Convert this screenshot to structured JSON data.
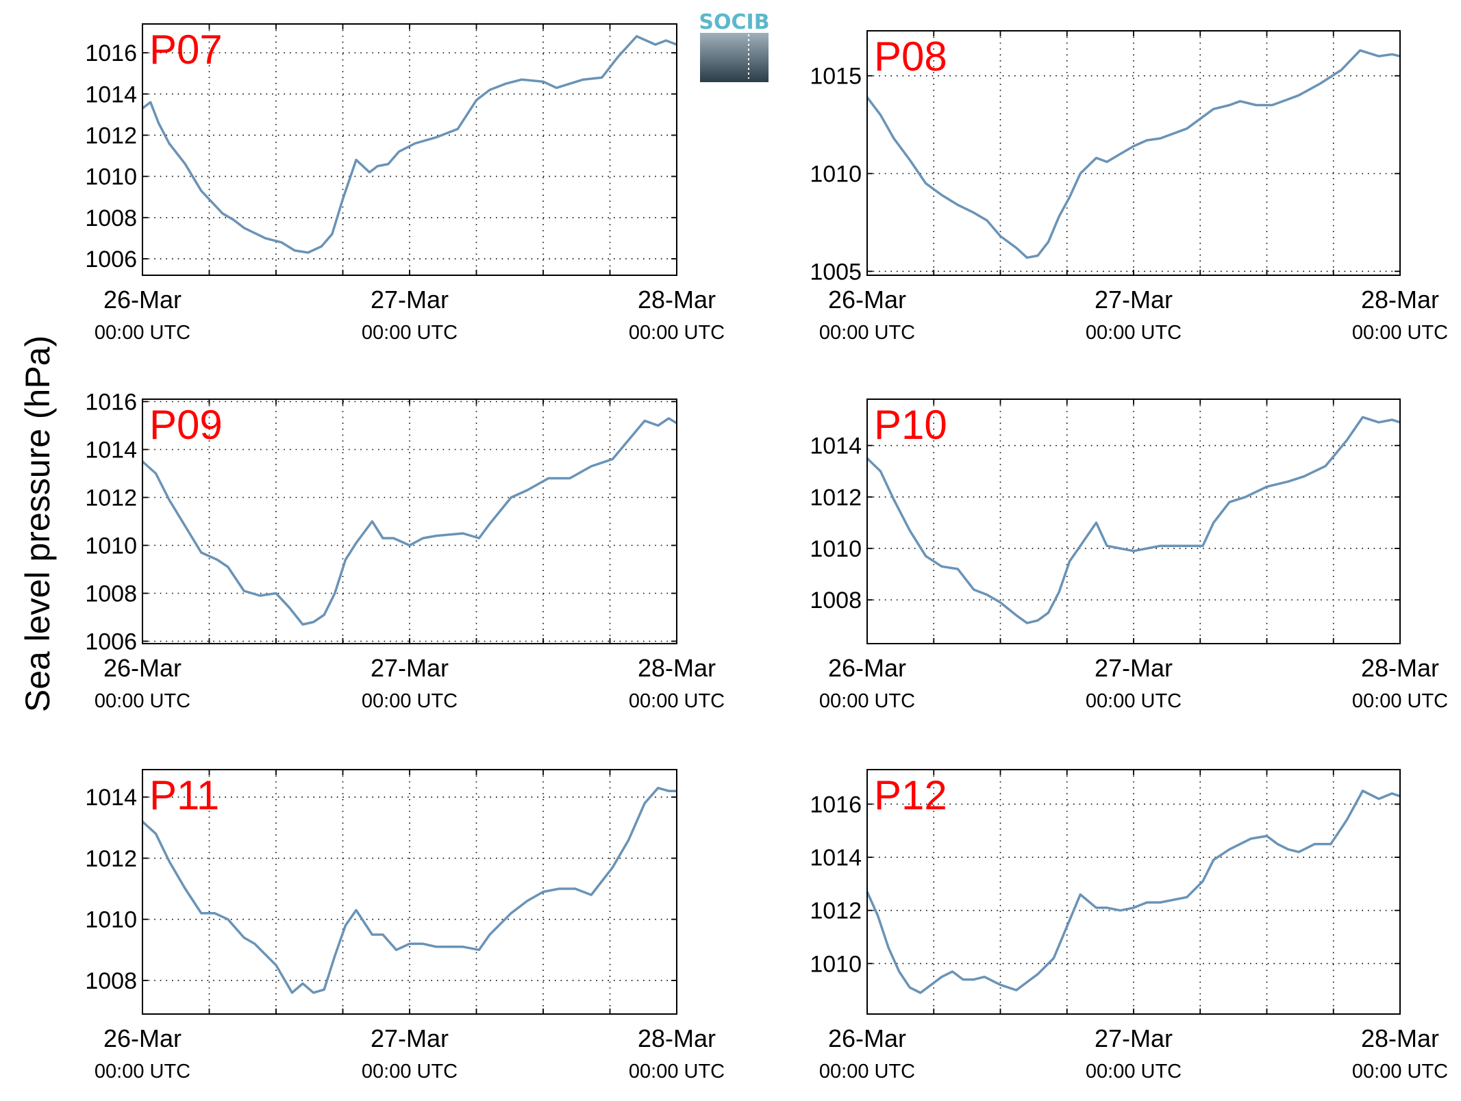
{
  "figure": {
    "ylabel": "Sea level pressure (hPa)",
    "logo_text": "SOCIB"
  },
  "colors": {
    "line": "#6a93b6",
    "panel_label": "#ff0000",
    "grid": "#000000",
    "logo_text": "#5bb8cc",
    "logo_top": "#9fb0bb",
    "logo_bottom": "#2b3d49"
  },
  "chart_data": [
    {
      "type": "line",
      "panel": "P07",
      "xlabel": "",
      "ylabel": "",
      "x_unit": "days since 26-Mar 00:00 UTC",
      "xlim": [
        0,
        2
      ],
      "ylim": [
        1005.2,
        1017.4
      ],
      "yticks": [
        1006,
        1008,
        1010,
        1012,
        1014,
        1016
      ],
      "x": [
        0,
        0.03,
        0.06,
        0.1,
        0.16,
        0.22,
        0.3,
        0.34,
        0.38,
        0.46,
        0.52,
        0.57,
        0.62,
        0.67,
        0.71,
        0.75,
        0.8,
        0.85,
        0.88,
        0.92,
        0.96,
        1.02,
        1.1,
        1.18,
        1.25,
        1.3,
        1.36,
        1.42,
        1.5,
        1.55,
        1.6,
        1.65,
        1.72,
        1.78,
        1.85,
        1.92,
        1.96,
        2.0
      ],
      "y": [
        1013.3,
        1013.6,
        1012.6,
        1011.6,
        1010.6,
        1009.3,
        1008.2,
        1007.9,
        1007.5,
        1007.0,
        1006.8,
        1006.4,
        1006.3,
        1006.6,
        1007.2,
        1008.9,
        1010.8,
        1010.2,
        1010.5,
        1010.6,
        1011.2,
        1011.6,
        1011.9,
        1012.3,
        1013.7,
        1014.2,
        1014.5,
        1014.7,
        1014.6,
        1014.3,
        1014.5,
        1014.7,
        1014.8,
        1015.8,
        1016.8,
        1016.4,
        1016.6,
        1016.4
      ]
    },
    {
      "type": "line",
      "panel": "P08",
      "xlabel": "",
      "ylabel": "",
      "x_unit": "days since 26-Mar 00:00 UTC",
      "xlim": [
        0,
        2
      ],
      "ylim": [
        1004.8,
        1017.3
      ],
      "yticks": [
        1005,
        1010,
        1015
      ],
      "x": [
        0,
        0.05,
        0.1,
        0.16,
        0.22,
        0.28,
        0.34,
        0.4,
        0.45,
        0.5,
        0.56,
        0.6,
        0.64,
        0.68,
        0.72,
        0.76,
        0.8,
        0.86,
        0.9,
        0.95,
        1.0,
        1.05,
        1.1,
        1.2,
        1.3,
        1.36,
        1.4,
        1.46,
        1.52,
        1.58,
        1.62,
        1.7,
        1.78,
        1.85,
        1.92,
        1.97,
        2.0
      ],
      "y": [
        1013.9,
        1013.0,
        1011.8,
        1010.7,
        1009.5,
        1008.9,
        1008.4,
        1008.0,
        1007.6,
        1006.8,
        1006.2,
        1005.7,
        1005.8,
        1006.5,
        1007.8,
        1008.8,
        1010.0,
        1010.8,
        1010.6,
        1011.0,
        1011.4,
        1011.7,
        1011.8,
        1012.3,
        1013.3,
        1013.5,
        1013.7,
        1013.5,
        1013.5,
        1013.8,
        1014.0,
        1014.6,
        1015.3,
        1016.3,
        1016.0,
        1016.1,
        1016.0
      ]
    },
    {
      "type": "line",
      "panel": "P09",
      "xlabel": "",
      "ylabel": "",
      "x_unit": "days since 26-Mar 00:00 UTC",
      "xlim": [
        0,
        2
      ],
      "ylim": [
        1005.9,
        1016.1
      ],
      "yticks": [
        1006,
        1008,
        1010,
        1012,
        1014,
        1016
      ],
      "x": [
        0,
        0.05,
        0.1,
        0.16,
        0.22,
        0.28,
        0.32,
        0.38,
        0.44,
        0.5,
        0.55,
        0.6,
        0.64,
        0.68,
        0.72,
        0.76,
        0.8,
        0.86,
        0.9,
        0.94,
        1.0,
        1.05,
        1.1,
        1.2,
        1.26,
        1.3,
        1.38,
        1.44,
        1.52,
        1.6,
        1.68,
        1.76,
        1.82,
        1.88,
        1.93,
        1.97,
        2.0
      ],
      "y": [
        1013.5,
        1013.0,
        1011.9,
        1010.8,
        1009.7,
        1009.4,
        1009.1,
        1008.1,
        1007.9,
        1008.0,
        1007.4,
        1006.7,
        1006.8,
        1007.1,
        1008.0,
        1009.4,
        1010.1,
        1011.0,
        1010.3,
        1010.3,
        1010.0,
        1010.3,
        1010.4,
        1010.5,
        1010.3,
        1010.9,
        1012.0,
        1012.3,
        1012.8,
        1012.8,
        1013.3,
        1013.6,
        1014.4,
        1015.2,
        1015.0,
        1015.3,
        1015.1
      ]
    },
    {
      "type": "line",
      "panel": "P10",
      "xlabel": "",
      "ylabel": "",
      "x_unit": "days since 26-Mar 00:00 UTC",
      "xlim": [
        0,
        2
      ],
      "ylim": [
        1006.3,
        1015.8
      ],
      "yticks": [
        1008,
        1010,
        1012,
        1014
      ],
      "x": [
        0,
        0.05,
        0.1,
        0.16,
        0.22,
        0.28,
        0.34,
        0.4,
        0.45,
        0.5,
        0.56,
        0.6,
        0.64,
        0.68,
        0.72,
        0.76,
        0.8,
        0.86,
        0.9,
        0.95,
        1.0,
        1.05,
        1.1,
        1.2,
        1.26,
        1.3,
        1.36,
        1.42,
        1.5,
        1.58,
        1.64,
        1.72,
        1.8,
        1.86,
        1.92,
        1.97,
        2.0
      ],
      "y": [
        1013.5,
        1013.0,
        1011.9,
        1010.7,
        1009.7,
        1009.3,
        1009.2,
        1008.4,
        1008.2,
        1007.9,
        1007.4,
        1007.1,
        1007.2,
        1007.5,
        1008.3,
        1009.5,
        1010.1,
        1011.0,
        1010.1,
        1010.0,
        1009.9,
        1010.0,
        1010.1,
        1010.1,
        1010.1,
        1011.0,
        1011.8,
        1012.0,
        1012.4,
        1012.6,
        1012.8,
        1013.2,
        1014.2,
        1015.1,
        1014.9,
        1015.0,
        1014.9
      ]
    },
    {
      "type": "line",
      "panel": "P11",
      "xlabel": "",
      "ylabel": "",
      "x_unit": "days since 26-Mar 00:00 UTC",
      "xlim": [
        0,
        2
      ],
      "ylim": [
        1006.9,
        1014.9
      ],
      "yticks": [
        1008,
        1010,
        1012,
        1014
      ],
      "x": [
        0,
        0.05,
        0.1,
        0.16,
        0.22,
        0.27,
        0.32,
        0.38,
        0.42,
        0.5,
        0.56,
        0.6,
        0.64,
        0.68,
        0.72,
        0.76,
        0.8,
        0.86,
        0.9,
        0.95,
        1.0,
        1.05,
        1.1,
        1.2,
        1.26,
        1.3,
        1.38,
        1.44,
        1.5,
        1.56,
        1.62,
        1.68,
        1.76,
        1.82,
        1.88,
        1.93,
        1.97,
        2.0
      ],
      "y": [
        1013.2,
        1012.8,
        1011.9,
        1011.0,
        1010.2,
        1010.2,
        1010.0,
        1009.4,
        1009.2,
        1008.5,
        1007.6,
        1007.9,
        1007.6,
        1007.7,
        1008.8,
        1009.8,
        1010.3,
        1009.5,
        1009.5,
        1009.0,
        1009.2,
        1009.2,
        1009.1,
        1009.1,
        1009.0,
        1009.5,
        1010.2,
        1010.6,
        1010.9,
        1011.0,
        1011.0,
        1010.8,
        1011.7,
        1012.6,
        1013.8,
        1014.3,
        1014.2,
        1014.2
      ]
    },
    {
      "type": "line",
      "panel": "P12",
      "xlabel": "",
      "ylabel": "",
      "x_unit": "days since 26-Mar 00:00 UTC",
      "xlim": [
        0,
        2
      ],
      "ylim": [
        1008.1,
        1017.3
      ],
      "yticks": [
        1010,
        1012,
        1014,
        1016
      ],
      "x": [
        0,
        0.04,
        0.08,
        0.12,
        0.16,
        0.2,
        0.24,
        0.28,
        0.32,
        0.36,
        0.4,
        0.44,
        0.5,
        0.56,
        0.6,
        0.64,
        0.7,
        0.75,
        0.8,
        0.86,
        0.9,
        0.95,
        1.0,
        1.05,
        1.1,
        1.2,
        1.26,
        1.3,
        1.36,
        1.44,
        1.5,
        1.54,
        1.58,
        1.62,
        1.68,
        1.74,
        1.8,
        1.86,
        1.92,
        1.97,
        2.0
      ],
      "y": [
        1012.7,
        1011.8,
        1010.6,
        1009.7,
        1009.1,
        1008.9,
        1009.2,
        1009.5,
        1009.7,
        1009.4,
        1009.4,
        1009.5,
        1009.2,
        1009.0,
        1009.3,
        1009.6,
        1010.2,
        1011.4,
        1012.6,
        1012.1,
        1012.1,
        1012.0,
        1012.1,
        1012.3,
        1012.3,
        1012.5,
        1013.1,
        1013.9,
        1014.3,
        1014.7,
        1014.8,
        1014.5,
        1014.3,
        1014.2,
        1014.5,
        1014.5,
        1015.4,
        1016.5,
        1016.2,
        1016.4,
        1016.3
      ]
    }
  ],
  "x_ticks": {
    "dates": [
      "26-Mar",
      "27-Mar",
      "28-Mar"
    ],
    "time": "00:00 UTC",
    "positions": [
      0,
      1,
      2
    ]
  }
}
